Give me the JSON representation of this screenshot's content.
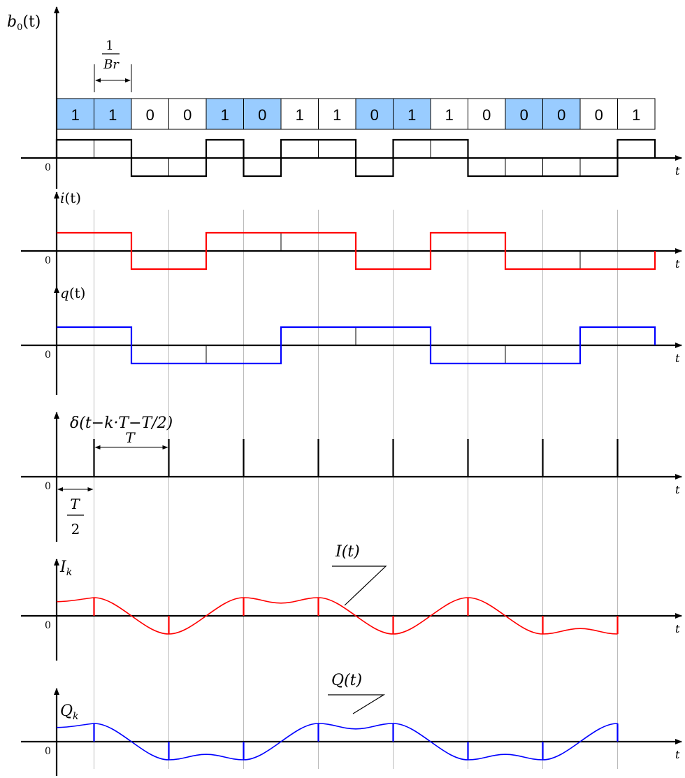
{
  "bits": {
    "values": [
      "1",
      "1",
      "0",
      "0",
      "1",
      "0",
      "1",
      "1",
      "0",
      "1",
      "1",
      "0",
      "0",
      "0",
      "0",
      "1"
    ],
    "highlighted": [
      true,
      true,
      false,
      false,
      true,
      true,
      false,
      false,
      true,
      true,
      false,
      false,
      true,
      true,
      false,
      false
    ],
    "highlight_color": "#99ccff"
  },
  "period_labels": {
    "bit_fraction_num": "1",
    "bit_fraction_den": "Br",
    "T": "T",
    "half_T_num": "T",
    "half_T_den": "2"
  },
  "colors": {
    "axis": "#000000",
    "grid": "#bbbbbb",
    "i_signal": "#ff0000",
    "q_signal": "#0000ff",
    "b0_signal": "#000000",
    "impulse": "#000000"
  },
  "panels": [
    {
      "id": "b0",
      "label_main": "b",
      "label_sub": "0",
      "label_arg": "(t)",
      "axis_letter": "t",
      "zero": "0"
    },
    {
      "id": "i",
      "label_main": "i",
      "label_sub": "",
      "label_arg": "(t)",
      "axis_letter": "t",
      "zero": "0"
    },
    {
      "id": "q",
      "label_main": "q",
      "label_sub": "",
      "label_arg": "(t)",
      "axis_letter": "t",
      "zero": "0"
    },
    {
      "id": "delta",
      "label_main": "δ",
      "label_sub": "",
      "label_arg": "(t−k·T−T/2)",
      "axis_letter": "t",
      "zero": "0"
    },
    {
      "id": "Ik",
      "label_main": "I",
      "label_sub": "k",
      "label_arg": "",
      "axis_letter": "t",
      "zero": "0"
    },
    {
      "id": "Qk",
      "label_main": "Q",
      "label_sub": "k",
      "label_arg": "",
      "axis_letter": "t",
      "zero": "0"
    }
  ],
  "curve_labels": {
    "I": "I(t)",
    "Q": "Q(t)"
  },
  "signals": {
    "b0_levels": [
      1,
      1,
      -1,
      -1,
      1,
      -1,
      1,
      1,
      -1,
      1,
      1,
      -1,
      -1,
      -1,
      -1,
      1
    ],
    "i_levels": [
      1,
      -1,
      1,
      1,
      -1,
      1,
      -1,
      -1
    ],
    "q_levels": [
      1,
      -1,
      -1,
      1,
      1,
      -1,
      -1,
      1
    ],
    "i_samples": [
      1,
      -1,
      1,
      1,
      -1,
      1,
      -1,
      -1
    ],
    "q_samples": [
      1,
      -1,
      -1,
      1,
      1,
      -1,
      -1,
      1
    ]
  }
}
